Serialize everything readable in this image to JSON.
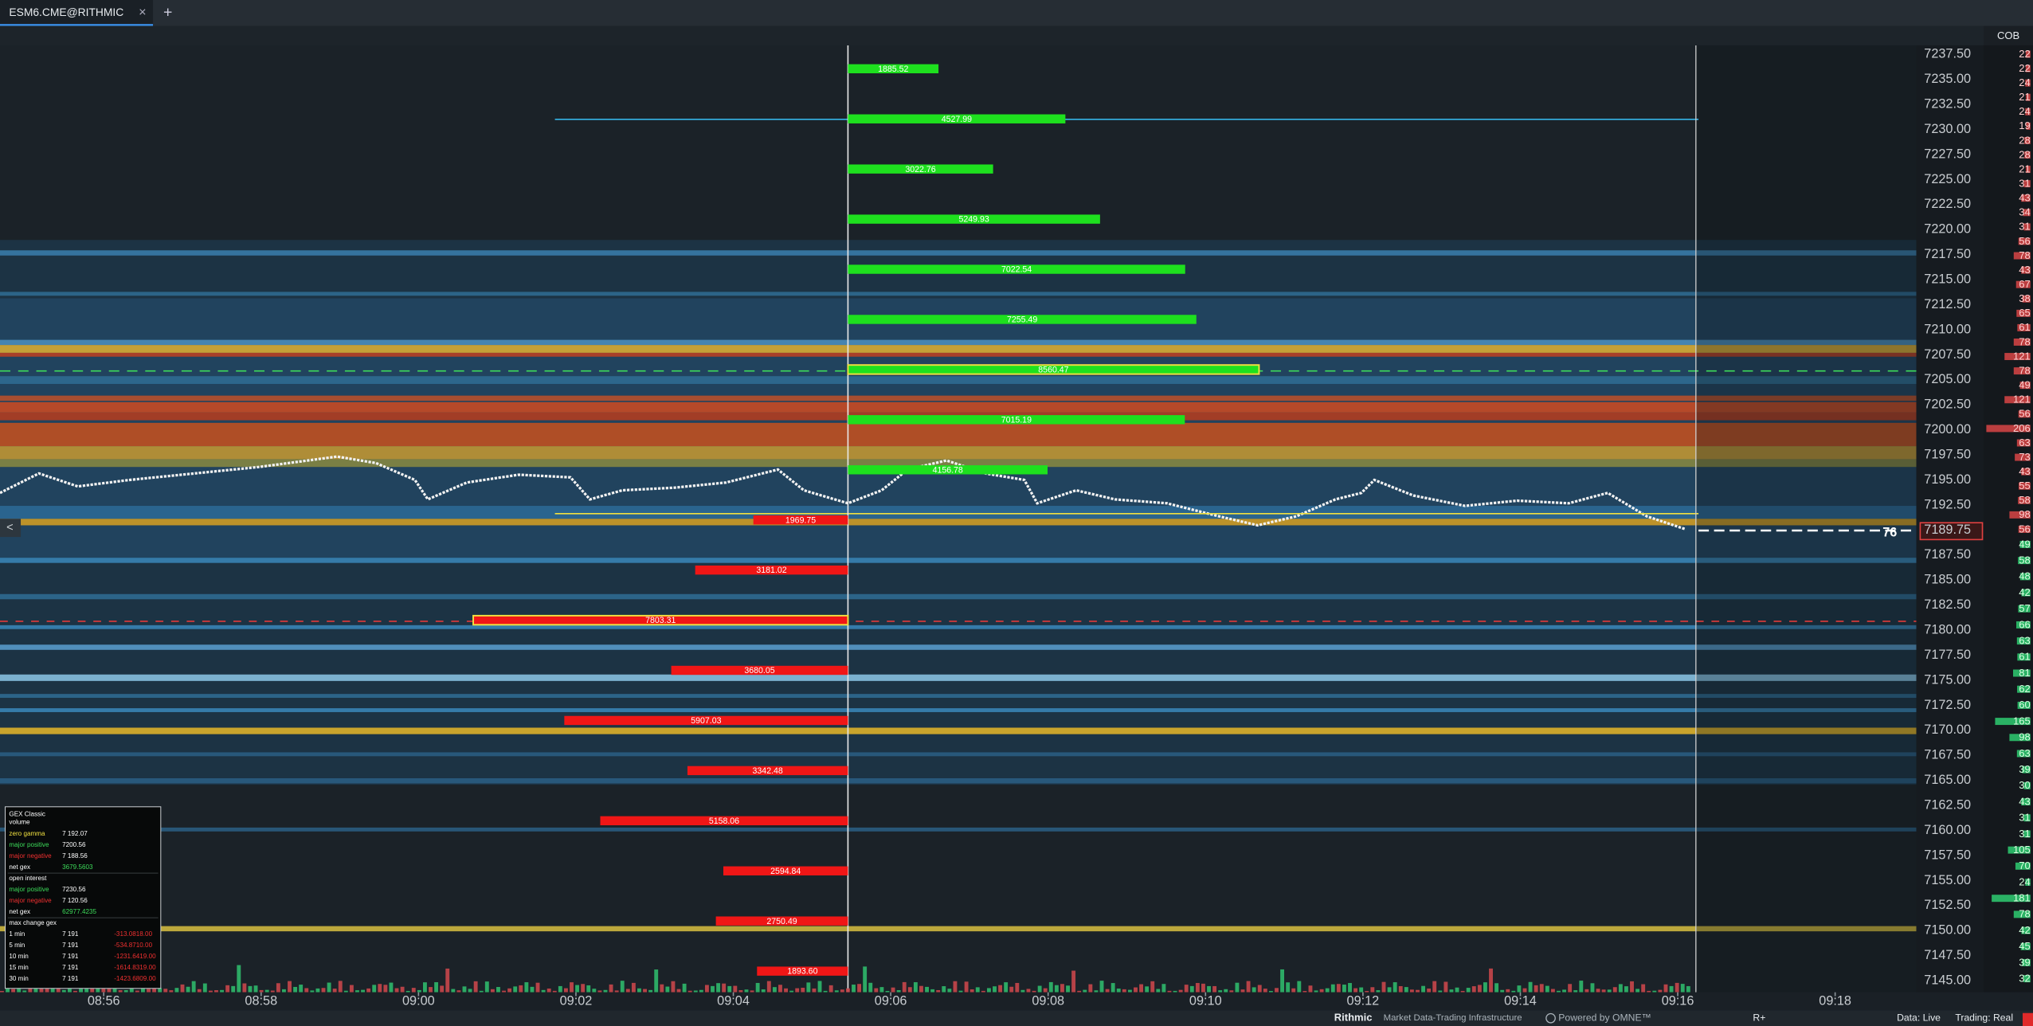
{
  "tab": {
    "title": "ESM6.CME@RITHMIC",
    "close": "×",
    "add": "+"
  },
  "cob": {
    "header": "COB",
    "asks": [
      22,
      22,
      24,
      21,
      24,
      19,
      28,
      28,
      21,
      31,
      43,
      34,
      31,
      56,
      78,
      43,
      67,
      38,
      65,
      61,
      78,
      121,
      78,
      49,
      121,
      56,
      206,
      63,
      73,
      43,
      55,
      58,
      98,
      56
    ],
    "bids": [
      49,
      58,
      48,
      42,
      57,
      66,
      63,
      61,
      81,
      62,
      60,
      165,
      98,
      63,
      39,
      30,
      43,
      31,
      31,
      105,
      70,
      24,
      181,
      78,
      42,
      45,
      39,
      32
    ]
  },
  "price_axis": {
    "labels": [
      "7237.50",
      "7235.00",
      "7232.50",
      "7230.00",
      "7227.50",
      "7225.00",
      "7222.50",
      "7220.00",
      "7217.50",
      "7215.00",
      "7212.50",
      "7210.00",
      "7207.50",
      "7205.00",
      "7202.50",
      "7200.00",
      "7197.50",
      "7195.00",
      "7192.50",
      "7189.75",
      "7187.50",
      "7185.00",
      "7182.50",
      "7180.00",
      "7177.50",
      "7175.00",
      "7172.50",
      "7170.00",
      "7167.50",
      "7165.00",
      "7162.50",
      "7160.00",
      "7157.50",
      "7155.00",
      "7152.50",
      "7150.00",
      "7147.50",
      "7145.00"
    ],
    "last_size": "76"
  },
  "time_axis": {
    "labels": [
      "08:56",
      "08:58",
      "09:00",
      "09:02",
      "09:04",
      "09:06",
      "09:08",
      "09:10",
      "09:12",
      "09:14",
      "09:16",
      "09:18"
    ]
  },
  "levels": {
    "call": [
      {
        "value": 1885.52,
        "label": "1885.52"
      },
      {
        "value": 4527.99,
        "label": "4527.99"
      },
      {
        "value": 3022.76,
        "label": "3022.76"
      },
      {
        "value": 5249.93,
        "label": "5249.93"
      },
      {
        "value": 7022.54,
        "label": "7022.54"
      },
      {
        "value": 7255.49,
        "label": "7255.49"
      },
      {
        "value": 8560.47,
        "label": "8560.47",
        "outlined": true
      },
      {
        "value": 7015.19,
        "label": "7015.19"
      },
      {
        "value": 4156.78,
        "label": "4156.78"
      }
    ],
    "put": [
      {
        "value": 1969.75,
        "label": "1969.75"
      },
      {
        "value": 3181.02,
        "label": "3181.02"
      },
      {
        "value": 7803.31,
        "label": "7803.31",
        "outlined": true
      },
      {
        "value": 3680.05,
        "label": "3680.05"
      },
      {
        "value": 5907.03,
        "label": "5907.03"
      },
      {
        "value": 3342.48,
        "label": "3342.48"
      },
      {
        "value": 5158.06,
        "label": "5158.06"
      },
      {
        "value": 2594.84,
        "label": "2594.84"
      },
      {
        "value": 2750.49,
        "label": "2750.49"
      },
      {
        "value": 1893.6,
        "label": "1893.60"
      }
    ]
  },
  "info_panel": {
    "title": "GEX Classic",
    "subtitle": "volume",
    "rows": [
      [
        "zero gamma",
        "7 192.07"
      ],
      [
        "major positive",
        "7200.56"
      ],
      [
        "major negative",
        "7 188.56"
      ],
      [
        "net gex",
        "3679.5603"
      ],
      [
        "open interest"
      ],
      [
        "major positive",
        "7230.56"
      ],
      [
        "major negative",
        "7 120.56"
      ],
      [
        "net gex",
        "62977.4235"
      ],
      [
        "max change gex"
      ],
      [
        "1 min",
        "7 191",
        "-313.0818.00"
      ],
      [
        "5 min",
        "7 191",
        "-534.8710.00"
      ],
      [
        "10 min",
        "7 191",
        "-1231.6419.00"
      ],
      [
        "15 min",
        "7 191",
        "-1614.8319.00"
      ],
      [
        "30 min",
        "7 191",
        "-1423.6809.00"
      ]
    ]
  },
  "collapse": "<",
  "footer": {
    "brand": "Rithmic",
    "tagline": "Market Data-Trading Infrastructure",
    "powered": "Powered by OMNE™",
    "mode": "R+",
    "data": "Data: Live",
    "trading": "Trading: Real"
  }
}
